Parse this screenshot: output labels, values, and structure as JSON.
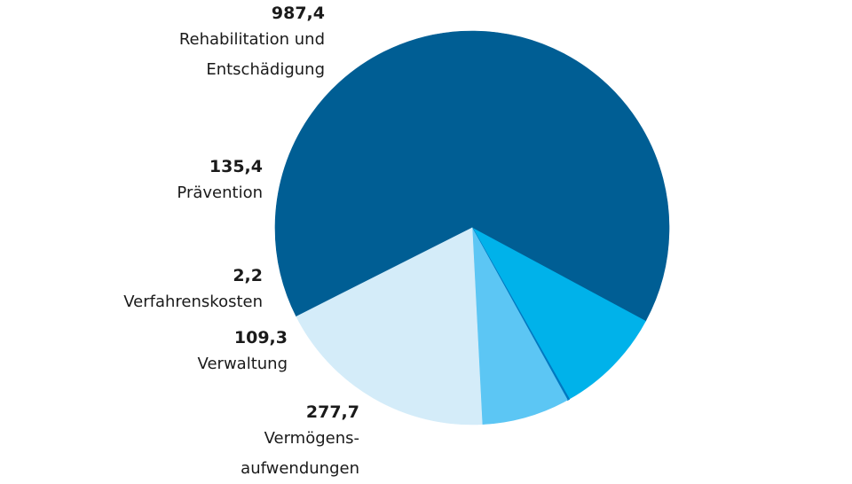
{
  "chart_data": {
    "type": "pie",
    "title": "",
    "slices": [
      {
        "value": "987,4",
        "num": 987.4,
        "label": "Rehabilitation und Entschädigung",
        "label_lines": [
          "Rehabilitation und",
          "Entschädigung"
        ],
        "color": "#005e94"
      },
      {
        "value": "135,4",
        "num": 135.4,
        "label": "Prävention",
        "label_lines": [
          "Prävention"
        ],
        "color": "#00b2ea"
      },
      {
        "value": "2,2",
        "num": 2.2,
        "label": "Verfahrenskosten",
        "label_lines": [
          "Verfahrenskosten"
        ],
        "color": "#0078c0"
      },
      {
        "value": "109,3",
        "num": 109.3,
        "label": "Verwaltung",
        "label_lines": [
          "Verwaltung"
        ],
        "color": "#5cc6f4"
      },
      {
        "value": "277,7",
        "num": 277.7,
        "label": "Vermögensaufwendungen",
        "label_lines": [
          "Vermögens-",
          "aufwendungen"
        ],
        "color": "#d4ecf9"
      }
    ]
  }
}
